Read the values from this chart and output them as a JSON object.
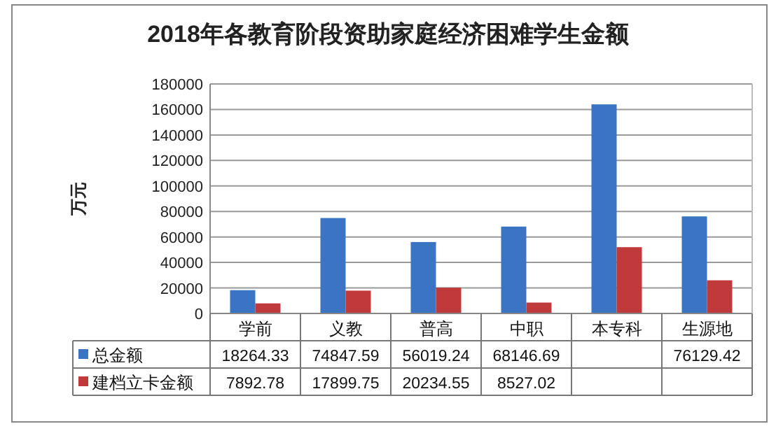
{
  "chart_data": {
    "type": "bar",
    "title": "2018年各教育阶段资助家庭经济困难学生金额",
    "ylabel": "万元",
    "categories": [
      "学前",
      "义教",
      "普高",
      "中职",
      "本专科",
      "生源地"
    ],
    "series": [
      {
        "name": "总金额",
        "color": "#3b74c2",
        "values": [
          18264.33,
          74847.59,
          56019.24,
          68146.69,
          164000,
          76129.42
        ],
        "value_labels": [
          "18264.33",
          "74847.59",
          "56019.24",
          "68146.69",
          null,
          "76129.42"
        ]
      },
      {
        "name": "建档立卡金额",
        "color": "#c0393b",
        "values": [
          7892.78,
          17899.75,
          20234.55,
          8527.02,
          52000,
          26000
        ],
        "value_labels": [
          "7892.78",
          "17899.75",
          "20234.55",
          "8527.02",
          null,
          null
        ]
      }
    ],
    "ylim": [
      0,
      180000
    ],
    "yticks": [
      0,
      20000,
      40000,
      60000,
      80000,
      100000,
      120000,
      140000,
      160000,
      180000
    ],
    "grid": "y",
    "legend": "bottom"
  }
}
